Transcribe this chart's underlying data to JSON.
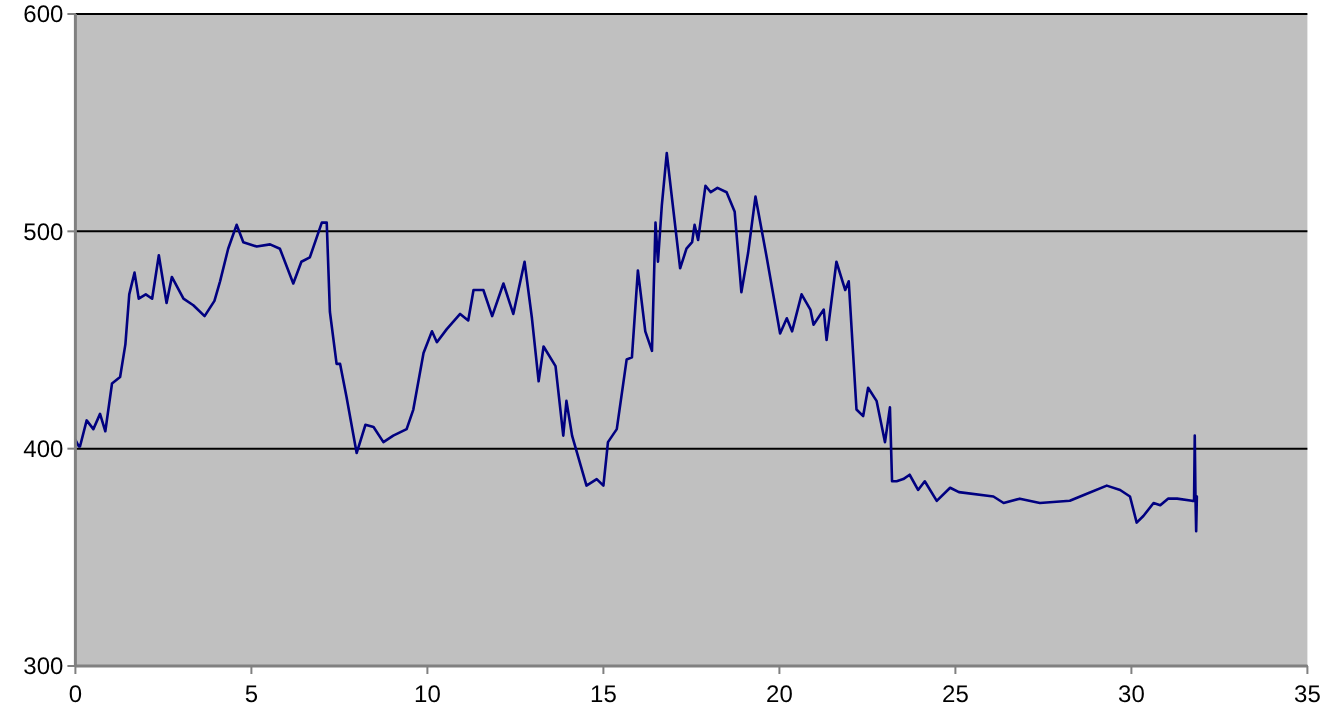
{
  "chart_data": {
    "type": "line",
    "xlim": [
      0,
      35
    ],
    "xticks": [
      0,
      5,
      10,
      15,
      20,
      25,
      30,
      35
    ],
    "ylim": [
      300,
      600
    ],
    "yticks": [
      300,
      400,
      500,
      600
    ],
    "grid": "y",
    "marker": "none",
    "line_style": "solid",
    "series": [
      {
        "color": "#000080",
        "x": [
          0,
          0.1,
          0.13,
          0.32,
          0.51,
          0.7,
          0.85,
          1.04,
          1.27,
          1.42,
          1.53,
          1.68,
          1.8,
          2.0,
          2.18,
          2.37,
          2.59,
          2.74,
          3.07,
          3.35,
          3.67,
          3.95,
          4.11,
          4.34,
          4.58,
          4.77,
          5.15,
          5.53,
          5.81,
          6.19,
          6.42,
          6.66,
          7.0,
          7.14,
          7.23,
          7.42,
          7.52,
          7.7,
          7.99,
          8.24,
          8.47,
          8.75,
          9.03,
          9.41,
          9.6,
          9.89,
          10.13,
          10.27,
          10.55,
          10.93,
          11.16,
          11.31,
          11.59,
          11.84,
          12.16,
          12.44,
          12.76,
          12.97,
          13.16,
          13.3,
          13.64,
          13.86,
          13.95,
          14.11,
          14.52,
          14.81,
          15.0,
          15.13,
          15.38,
          15.66,
          15.81,
          15.98,
          16.19,
          16.38,
          16.48,
          16.55,
          16.66,
          16.8,
          16.95,
          17.18,
          17.36,
          17.52,
          17.59,
          17.69,
          17.9,
          18.05,
          18.24,
          18.5,
          18.73,
          18.92,
          19.11,
          19.32,
          19.64,
          20.02,
          20.21,
          20.36,
          20.63,
          20.88,
          20.97,
          21.26,
          21.34,
          21.62,
          21.87,
          21.97,
          22.19,
          22.38,
          22.52,
          22.76,
          23.0,
          23.14,
          23.2,
          23.33,
          23.52,
          23.7,
          23.94,
          24.13,
          24.47,
          24.85,
          25.1,
          26.08,
          26.37,
          26.83,
          27.4,
          28.25,
          28.7,
          29.3,
          29.68,
          29.96,
          30.15,
          30.34,
          30.63,
          30.82,
          31.04,
          31.3,
          31.72,
          31.78,
          31.8,
          31.82,
          31.84,
          31.86
        ],
        "values": [
          404,
          401,
          401,
          413,
          409,
          416,
          408,
          430,
          433,
          448,
          471,
          481,
          469,
          471,
          469,
          489,
          467,
          479,
          469,
          466,
          461,
          468,
          477,
          492,
          503,
          495,
          493,
          494,
          492,
          476,
          486,
          488,
          504,
          504,
          463,
          439,
          439,
          424,
          398,
          411,
          410,
          403,
          406,
          409,
          418,
          444,
          454,
          449,
          455,
          462,
          459,
          473,
          473,
          461,
          476,
          462,
          486,
          460,
          431,
          447,
          438,
          406,
          422,
          406,
          383,
          386,
          383,
          403,
          409,
          441,
          442,
          482,
          454,
          445,
          504,
          486,
          512,
          536,
          515,
          483,
          492,
          495,
          503,
          496,
          521,
          518,
          520,
          518,
          509,
          472,
          490,
          516,
          488,
          453,
          460,
          454,
          471,
          464,
          457,
          464,
          450,
          486,
          473,
          477,
          418,
          415,
          428,
          422,
          403,
          419,
          385,
          385,
          386,
          388,
          381,
          385,
          376,
          382,
          380,
          378,
          375,
          377,
          375,
          376,
          379,
          383,
          381,
          378,
          366,
          369,
          375,
          374,
          377,
          377,
          376,
          376,
          406,
          378,
          362,
          378
        ]
      }
    ]
  }
}
